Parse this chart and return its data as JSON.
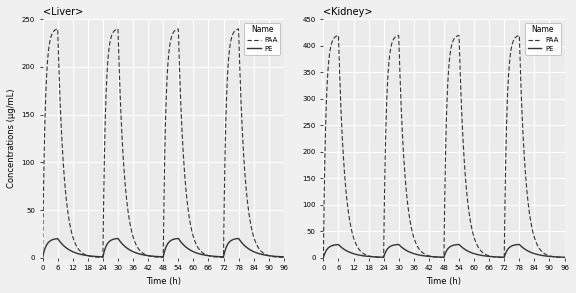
{
  "liver_title": "<Liver>",
  "kidney_title": "<Kidney>",
  "xlabel": "Time (h)",
  "ylabel": "Concentrations (μg/mL)",
  "liver_ylim": [
    0,
    250
  ],
  "kidney_ylim": [
    0,
    450
  ],
  "liver_yticks": [
    0,
    50,
    100,
    150,
    200,
    250
  ],
  "kidney_yticks": [
    0,
    50,
    100,
    150,
    200,
    250,
    300,
    350,
    400,
    450
  ],
  "xticks": [
    0,
    6,
    12,
    18,
    24,
    30,
    36,
    42,
    48,
    54,
    60,
    66,
    72,
    78,
    84,
    90,
    96
  ],
  "xlim": [
    0,
    96
  ],
  "legend_labels": [
    "PAA",
    "PE"
  ],
  "bg_color": "#EBEBEB",
  "grid_color": "#FFFFFF",
  "line_color": "#333333",
  "dose_interval": 24,
  "dose_duration": 6,
  "num_days": 4,
  "total_time": 96,
  "liver_PAA_peak": 240,
  "liver_PE_peak": 20,
  "kidney_PAA_peak": 420,
  "kidney_PE_peak": 25
}
